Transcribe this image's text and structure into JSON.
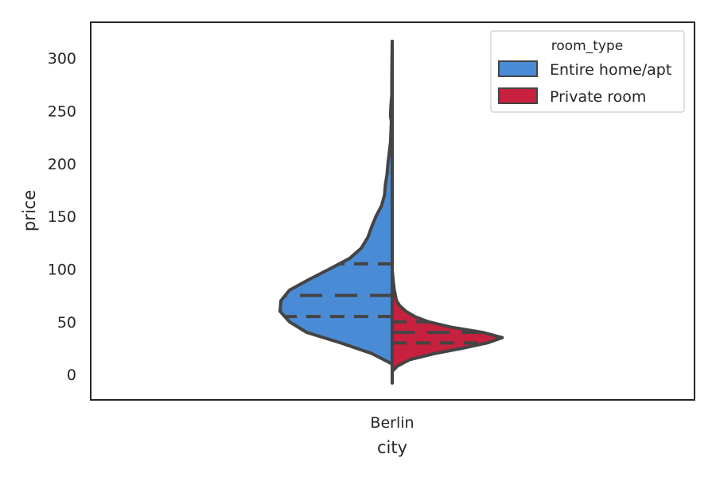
{
  "chart_data": {
    "type": "violin",
    "split": true,
    "inner": "quartile",
    "title": "",
    "xlabel": "city",
    "ylabel": "price",
    "categories": [
      "Berlin"
    ],
    "ylim": [
      -24,
      334
    ],
    "yticks": [
      0,
      50,
      100,
      150,
      200,
      250,
      300
    ],
    "ytick_labels": [
      "0",
      "50",
      "100",
      "150",
      "200",
      "250",
      "300"
    ],
    "grid": false,
    "legend": {
      "title": "room_type",
      "placement": "top-right"
    },
    "series": [
      {
        "name": "Entire home/apt",
        "color": "#4a8bd6",
        "side": "left",
        "quartiles": {
          "q1": 55,
          "median": 75,
          "q3": 105
        },
        "density": [
          [
            10,
            0.0
          ],
          [
            20,
            0.18
          ],
          [
            30,
            0.46
          ],
          [
            40,
            0.76
          ],
          [
            50,
            0.92
          ],
          [
            60,
            1.0
          ],
          [
            70,
            0.99
          ],
          [
            80,
            0.92
          ],
          [
            90,
            0.74
          ],
          [
            100,
            0.56
          ],
          [
            110,
            0.38
          ],
          [
            120,
            0.27
          ],
          [
            130,
            0.22
          ],
          [
            140,
            0.19
          ],
          [
            150,
            0.15
          ],
          [
            160,
            0.09
          ],
          [
            170,
            0.07
          ],
          [
            180,
            0.06
          ],
          [
            190,
            0.05
          ],
          [
            200,
            0.04
          ],
          [
            210,
            0.03
          ],
          [
            220,
            0.02
          ],
          [
            230,
            0.01
          ],
          [
            240,
            0.005
          ],
          [
            260,
            0.0
          ]
        ]
      },
      {
        "name": "Private room",
        "color": "#c8203f",
        "side": "right",
        "quartiles": {
          "q1": 30,
          "median": 40,
          "q3": 50
        },
        "density": [
          [
            3,
            0.0
          ],
          [
            8,
            0.05
          ],
          [
            14,
            0.15
          ],
          [
            20,
            0.38
          ],
          [
            25,
            0.62
          ],
          [
            30,
            0.84
          ],
          [
            35,
            0.97
          ],
          [
            40,
            0.8
          ],
          [
            45,
            0.52
          ],
          [
            50,
            0.32
          ],
          [
            55,
            0.2
          ],
          [
            60,
            0.12
          ],
          [
            65,
            0.07
          ],
          [
            70,
            0.04
          ],
          [
            80,
            0.02
          ],
          [
            90,
            0.01
          ],
          [
            100,
            0.0
          ]
        ]
      }
    ],
    "outline": {
      "color": "#444444",
      "left": [
        [
          -8,
          0.0
        ],
        [
          10,
          0.0
        ],
        [
          20,
          0.48
        ],
        [
          30,
          1.2
        ],
        [
          40,
          2.0
        ],
        [
          50,
          2.4
        ],
        [
          60,
          2.62
        ],
        [
          70,
          2.6
        ],
        [
          80,
          2.4
        ],
        [
          90,
          1.95
        ],
        [
          100,
          1.47
        ],
        [
          110,
          1.0
        ],
        [
          120,
          0.72
        ],
        [
          130,
          0.57
        ],
        [
          140,
          0.48
        ],
        [
          150,
          0.38
        ],
        [
          160,
          0.25
        ],
        [
          170,
          0.18
        ],
        [
          180,
          0.16
        ],
        [
          190,
          0.12
        ],
        [
          200,
          0.1
        ],
        [
          210,
          0.07
        ],
        [
          220,
          0.04
        ],
        [
          240,
          0.02
        ],
        [
          245,
          0.04
        ],
        [
          255,
          0.03
        ],
        [
          265,
          0.01
        ],
        [
          280,
          0.01
        ],
        [
          300,
          0.005
        ],
        [
          316,
          0.0
        ]
      ],
      "right": [
        [
          -8,
          0.0
        ],
        [
          3,
          0.0
        ],
        [
          8,
          0.12
        ],
        [
          14,
          0.4
        ],
        [
          20,
          1.0
        ],
        [
          25,
          1.64
        ],
        [
          30,
          2.22
        ],
        [
          35,
          2.57
        ],
        [
          40,
          2.11
        ],
        [
          45,
          1.37
        ],
        [
          50,
          0.85
        ],
        [
          55,
          0.53
        ],
        [
          60,
          0.32
        ],
        [
          65,
          0.18
        ],
        [
          70,
          0.1
        ],
        [
          80,
          0.05
        ],
        [
          90,
          0.02
        ],
        [
          100,
          0.0
        ]
      ]
    }
  }
}
